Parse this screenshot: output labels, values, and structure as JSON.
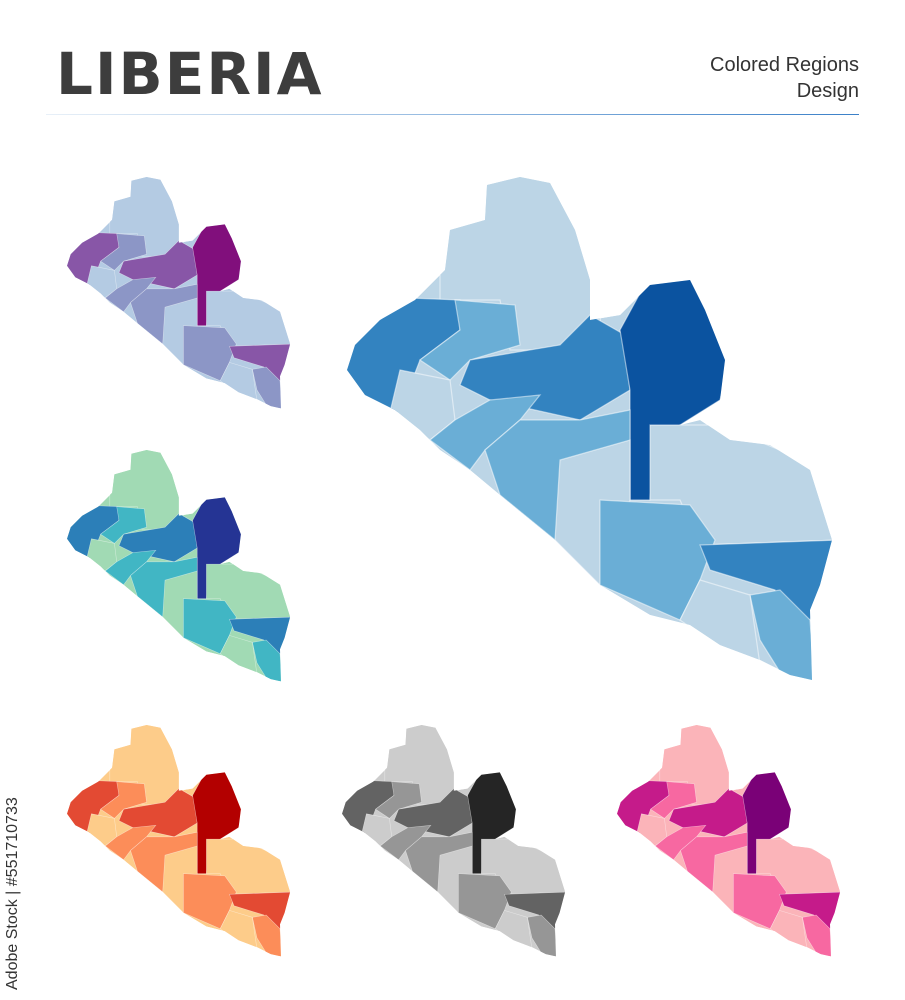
{
  "header": {
    "title": "LIBERIA",
    "subtitle_line1": "Colored Regions",
    "subtitle_line2": "Design"
  },
  "watermark": "Adobe Stock | #551710733",
  "maps": [
    {
      "name": "blue-large",
      "palette": [
        "#bcd5e6",
        "#6aaed6",
        "#3383c0",
        "#0b53a0"
      ]
    },
    {
      "name": "purple",
      "palette": [
        "#b4cbe3",
        "#8c96c6",
        "#8856a7",
        "#810f7c"
      ]
    },
    {
      "name": "teal",
      "palette": [
        "#a1dab4",
        "#41b6c4",
        "#2c7fb8",
        "#253494"
      ]
    },
    {
      "name": "orange",
      "palette": [
        "#fdcc8a",
        "#fc8d59",
        "#e34a33",
        "#b30000"
      ]
    },
    {
      "name": "gray",
      "palette": [
        "#cccccc",
        "#969696",
        "#636363",
        "#252525"
      ]
    },
    {
      "name": "pink",
      "palette": [
        "#fbb4b9",
        "#f768a1",
        "#c51b8a",
        "#7a0177"
      ]
    }
  ]
}
